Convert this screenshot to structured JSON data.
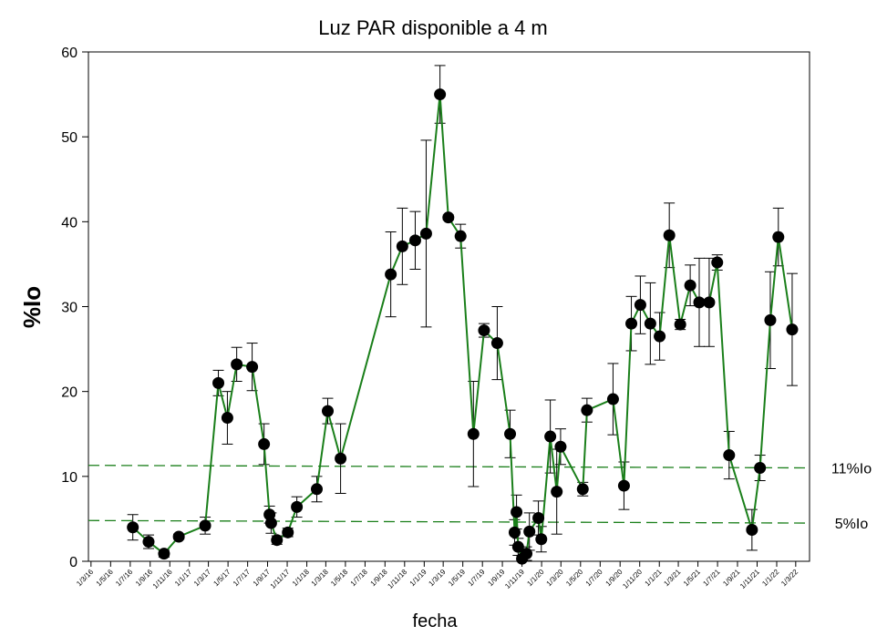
{
  "chart_data": {
    "type": "line",
    "title": "Luz PAR disponible a 4 m",
    "xlabel": "fecha",
    "ylabel": "%Io",
    "color": "#1a7f1a",
    "marker_color": "#000000",
    "x": [
      "2016-07-09",
      "2016-08-27",
      "2016-10-14",
      "2016-11-29",
      "2017-02-19",
      "2017-04-01",
      "2017-04-29",
      "2017-05-28",
      "2017-07-15",
      "2017-08-21",
      "2017-09-07",
      "2017-09-12",
      "2017-09-30",
      "2017-11-03",
      "2017-12-01",
      "2018-02-01",
      "2018-03-07",
      "2018-04-16",
      "2018-09-19",
      "2018-10-25",
      "2018-12-04",
      "2019-01-07",
      "2019-02-19",
      "2019-03-17",
      "2019-04-24",
      "2019-06-03",
      "2019-07-06",
      "2019-08-16",
      "2019-09-25",
      "2019-10-09",
      "2019-10-15",
      "2019-10-20",
      "2019-11-01",
      "2019-11-15",
      "2019-11-24",
      "2019-12-22",
      "2019-12-31",
      "2020-01-28",
      "2020-02-17",
      "2020-02-29",
      "2020-05-08",
      "2020-05-21",
      "2020-08-10",
      "2020-09-13",
      "2020-10-06",
      "2020-11-03",
      "2020-12-04",
      "2021-01-02",
      "2021-02-01",
      "2021-03-07",
      "2021-04-07",
      "2021-05-05",
      "2021-06-05",
      "2021-06-30",
      "2021-08-06",
      "2021-10-16",
      "2021-11-10",
      "2021-12-12",
      "2022-01-06",
      "2022-02-18"
    ],
    "values": [
      4.0,
      2.3,
      0.9,
      2.9,
      4.2,
      21.0,
      16.9,
      23.2,
      22.9,
      13.8,
      5.5,
      4.5,
      2.5,
      3.4,
      6.4,
      8.5,
      17.7,
      12.1,
      33.8,
      37.1,
      37.8,
      38.6,
      55.0,
      40.5,
      38.3,
      15.0,
      27.2,
      25.7,
      15.0,
      3.4,
      5.8,
      1.7,
      0.3,
      0.9,
      3.5,
      5.1,
      2.6,
      14.7,
      8.2,
      13.5,
      8.5,
      17.8,
      19.1,
      8.9,
      28.0,
      30.2,
      28.0,
      26.5,
      38.4,
      27.9,
      32.5,
      30.5,
      30.5,
      35.2,
      12.5,
      3.7,
      11.0,
      28.4,
      38.2,
      27.3
    ],
    "errors": [
      1.5,
      0.8,
      0.4,
      0.3,
      1.0,
      1.5,
      3.1,
      2.0,
      2.8,
      2.4,
      1.0,
      1.2,
      0.5,
      0.5,
      1.2,
      1.5,
      1.5,
      4.1,
      5.0,
      4.5,
      3.4,
      11.0,
      3.4,
      0.3,
      1.4,
      6.2,
      0.8,
      4.3,
      2.8,
      1.5,
      2.0,
      1.0,
      0.3,
      0.8,
      2.2,
      2.0,
      1.5,
      4.3,
      5.0,
      2.1,
      0.8,
      1.4,
      4.2,
      2.8,
      3.2,
      3.4,
      4.8,
      2.8,
      3.8,
      0.6,
      2.4,
      5.2,
      5.2,
      0.9,
      2.8,
      2.4,
      1.5,
      5.7,
      3.4,
      6.6
    ],
    "reference_lines": [
      {
        "label": "11%Io",
        "values": [
          11.3,
          11.0
        ]
      },
      {
        "label": "5%Io",
        "values": [
          4.8,
          4.5
        ]
      }
    ],
    "xlim": [
      "2016-02-22",
      "2022-04-13"
    ],
    "ylim": [
      0,
      60
    ],
    "yticks": [
      0,
      10,
      20,
      30,
      40,
      50,
      60
    ],
    "xticks": [
      {
        "value": "2016-03-01",
        "label": "1/3/16"
      },
      {
        "value": "2016-05-01",
        "label": "1/5/16"
      },
      {
        "value": "2016-07-01",
        "label": "1/7/16"
      },
      {
        "value": "2016-09-01",
        "label": "1/9/16"
      },
      {
        "value": "2016-11-01",
        "label": "1/11/16"
      },
      {
        "value": "2017-01-01",
        "label": "1/1/17"
      },
      {
        "value": "2017-03-01",
        "label": "1/3/17"
      },
      {
        "value": "2017-05-01",
        "label": "1/5/17"
      },
      {
        "value": "2017-07-01",
        "label": "1/7/17"
      },
      {
        "value": "2017-09-01",
        "label": "1/9/17"
      },
      {
        "value": "2017-11-01",
        "label": "1/11/17"
      },
      {
        "value": "2018-01-01",
        "label": "1/1/18"
      },
      {
        "value": "2018-03-01",
        "label": "1/3/18"
      },
      {
        "value": "2018-05-01",
        "label": "1/5/18"
      },
      {
        "value": "2018-07-01",
        "label": "1/7/18"
      },
      {
        "value": "2018-09-01",
        "label": "1/9/18"
      },
      {
        "value": "2018-11-01",
        "label": "1/11/18"
      },
      {
        "value": "2019-01-01",
        "label": "1/1/19"
      },
      {
        "value": "2019-03-01",
        "label": "1/3/19"
      },
      {
        "value": "2019-05-01",
        "label": "1/5/19"
      },
      {
        "value": "2019-07-01",
        "label": "1/7/19"
      },
      {
        "value": "2019-09-01",
        "label": "1/9/19"
      },
      {
        "value": "2019-11-01",
        "label": "1/11/19"
      },
      {
        "value": "2020-01-01",
        "label": "1/1/20"
      },
      {
        "value": "2020-03-01",
        "label": "1/3/20"
      },
      {
        "value": "2020-05-01",
        "label": "1/5/20"
      },
      {
        "value": "2020-07-01",
        "label": "1/7/20"
      },
      {
        "value": "2020-09-01",
        "label": "1/9/20"
      },
      {
        "value": "2020-11-01",
        "label": "1/11/20"
      },
      {
        "value": "2021-01-01",
        "label": "1/1/21"
      },
      {
        "value": "2021-03-01",
        "label": "1/3/21"
      },
      {
        "value": "2021-05-01",
        "label": "1/5/21"
      },
      {
        "value": "2021-07-01",
        "label": "1/7/21"
      },
      {
        "value": "2021-09-01",
        "label": "1/9/21"
      },
      {
        "value": "2021-11-01",
        "label": "1/11/21"
      },
      {
        "value": "2022-01-01",
        "label": "1/1/22"
      },
      {
        "value": "2022-03-01",
        "label": "1/3/22"
      }
    ]
  }
}
